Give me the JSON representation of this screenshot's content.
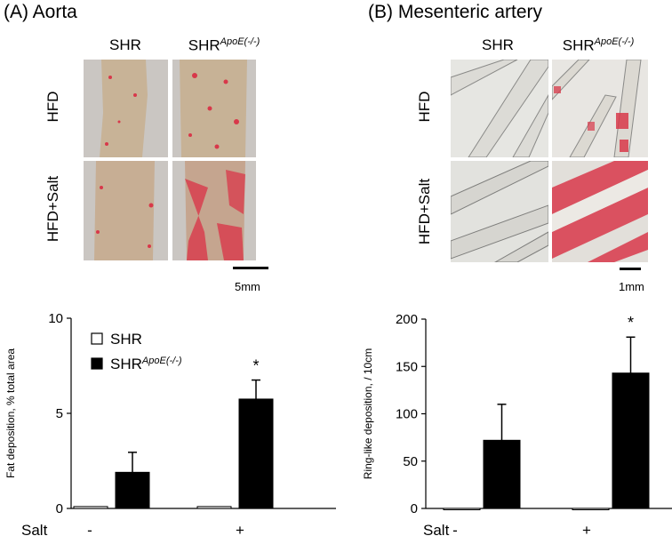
{
  "panel_a": {
    "title": "(A) Aorta",
    "col_labels": [
      "SHR",
      "SHR"
    ],
    "col2_sup": "ApoE(-/-)",
    "row_labels": [
      "HFD",
      "HFD+Salt"
    ],
    "scale_label": "5mm"
  },
  "panel_b": {
    "title": "(B) Mesenteric artery",
    "col_labels": [
      "SHR",
      "SHR"
    ],
    "col2_sup": "ApoE(-/-)",
    "row_labels": [
      "HFD",
      "HFD+Salt"
    ],
    "scale_label": "1mm"
  },
  "colors": {
    "bar_filled": "#000000",
    "bar_open": "#ffffff",
    "stain": "#d8384a",
    "tissue": "#c9b59a",
    "background_photo": "#c8c4c0"
  },
  "chart_data": [
    {
      "type": "bar",
      "title": "",
      "xlabel": "Salt",
      "ylabel": "Fat deposition, % total area",
      "ylim": [
        0,
        10
      ],
      "yticks": [
        "0",
        "5",
        "10"
      ],
      "yticks_values": [
        0,
        5,
        10
      ],
      "categories": [
        "-",
        "+"
      ],
      "series": [
        {
          "name": "SHR",
          "values": [
            0.1,
            0.1
          ],
          "errors": [
            0,
            0
          ]
        },
        {
          "name": "SHR",
          "name_sup": "ApoE(-/-)",
          "values": [
            1.9,
            5.75
          ],
          "errors": [
            1.05,
            1.0
          ]
        }
      ],
      "legend": "top-left",
      "annotations": [
        "*"
      ]
    },
    {
      "type": "bar",
      "title": "",
      "xlabel": "Salt",
      "ylabel": "Ring-like deposition,  / 10cm",
      "ylim": [
        0,
        200
      ],
      "yticks": [
        "0",
        "50",
        "100",
        "150",
        "200"
      ],
      "yticks_values": [
        0,
        50,
        100,
        150,
        200
      ],
      "categories": [
        "-",
        "+"
      ],
      "series": [
        {
          "name": "SHR",
          "values": [
            0,
            0
          ],
          "errors": [
            0,
            0
          ]
        },
        {
          "name": "SHR",
          "name_sup": "ApoE(-/-)",
          "values": [
            72,
            143
          ],
          "errors": [
            38,
            38
          ]
        }
      ],
      "annotations": [
        "*"
      ]
    }
  ]
}
